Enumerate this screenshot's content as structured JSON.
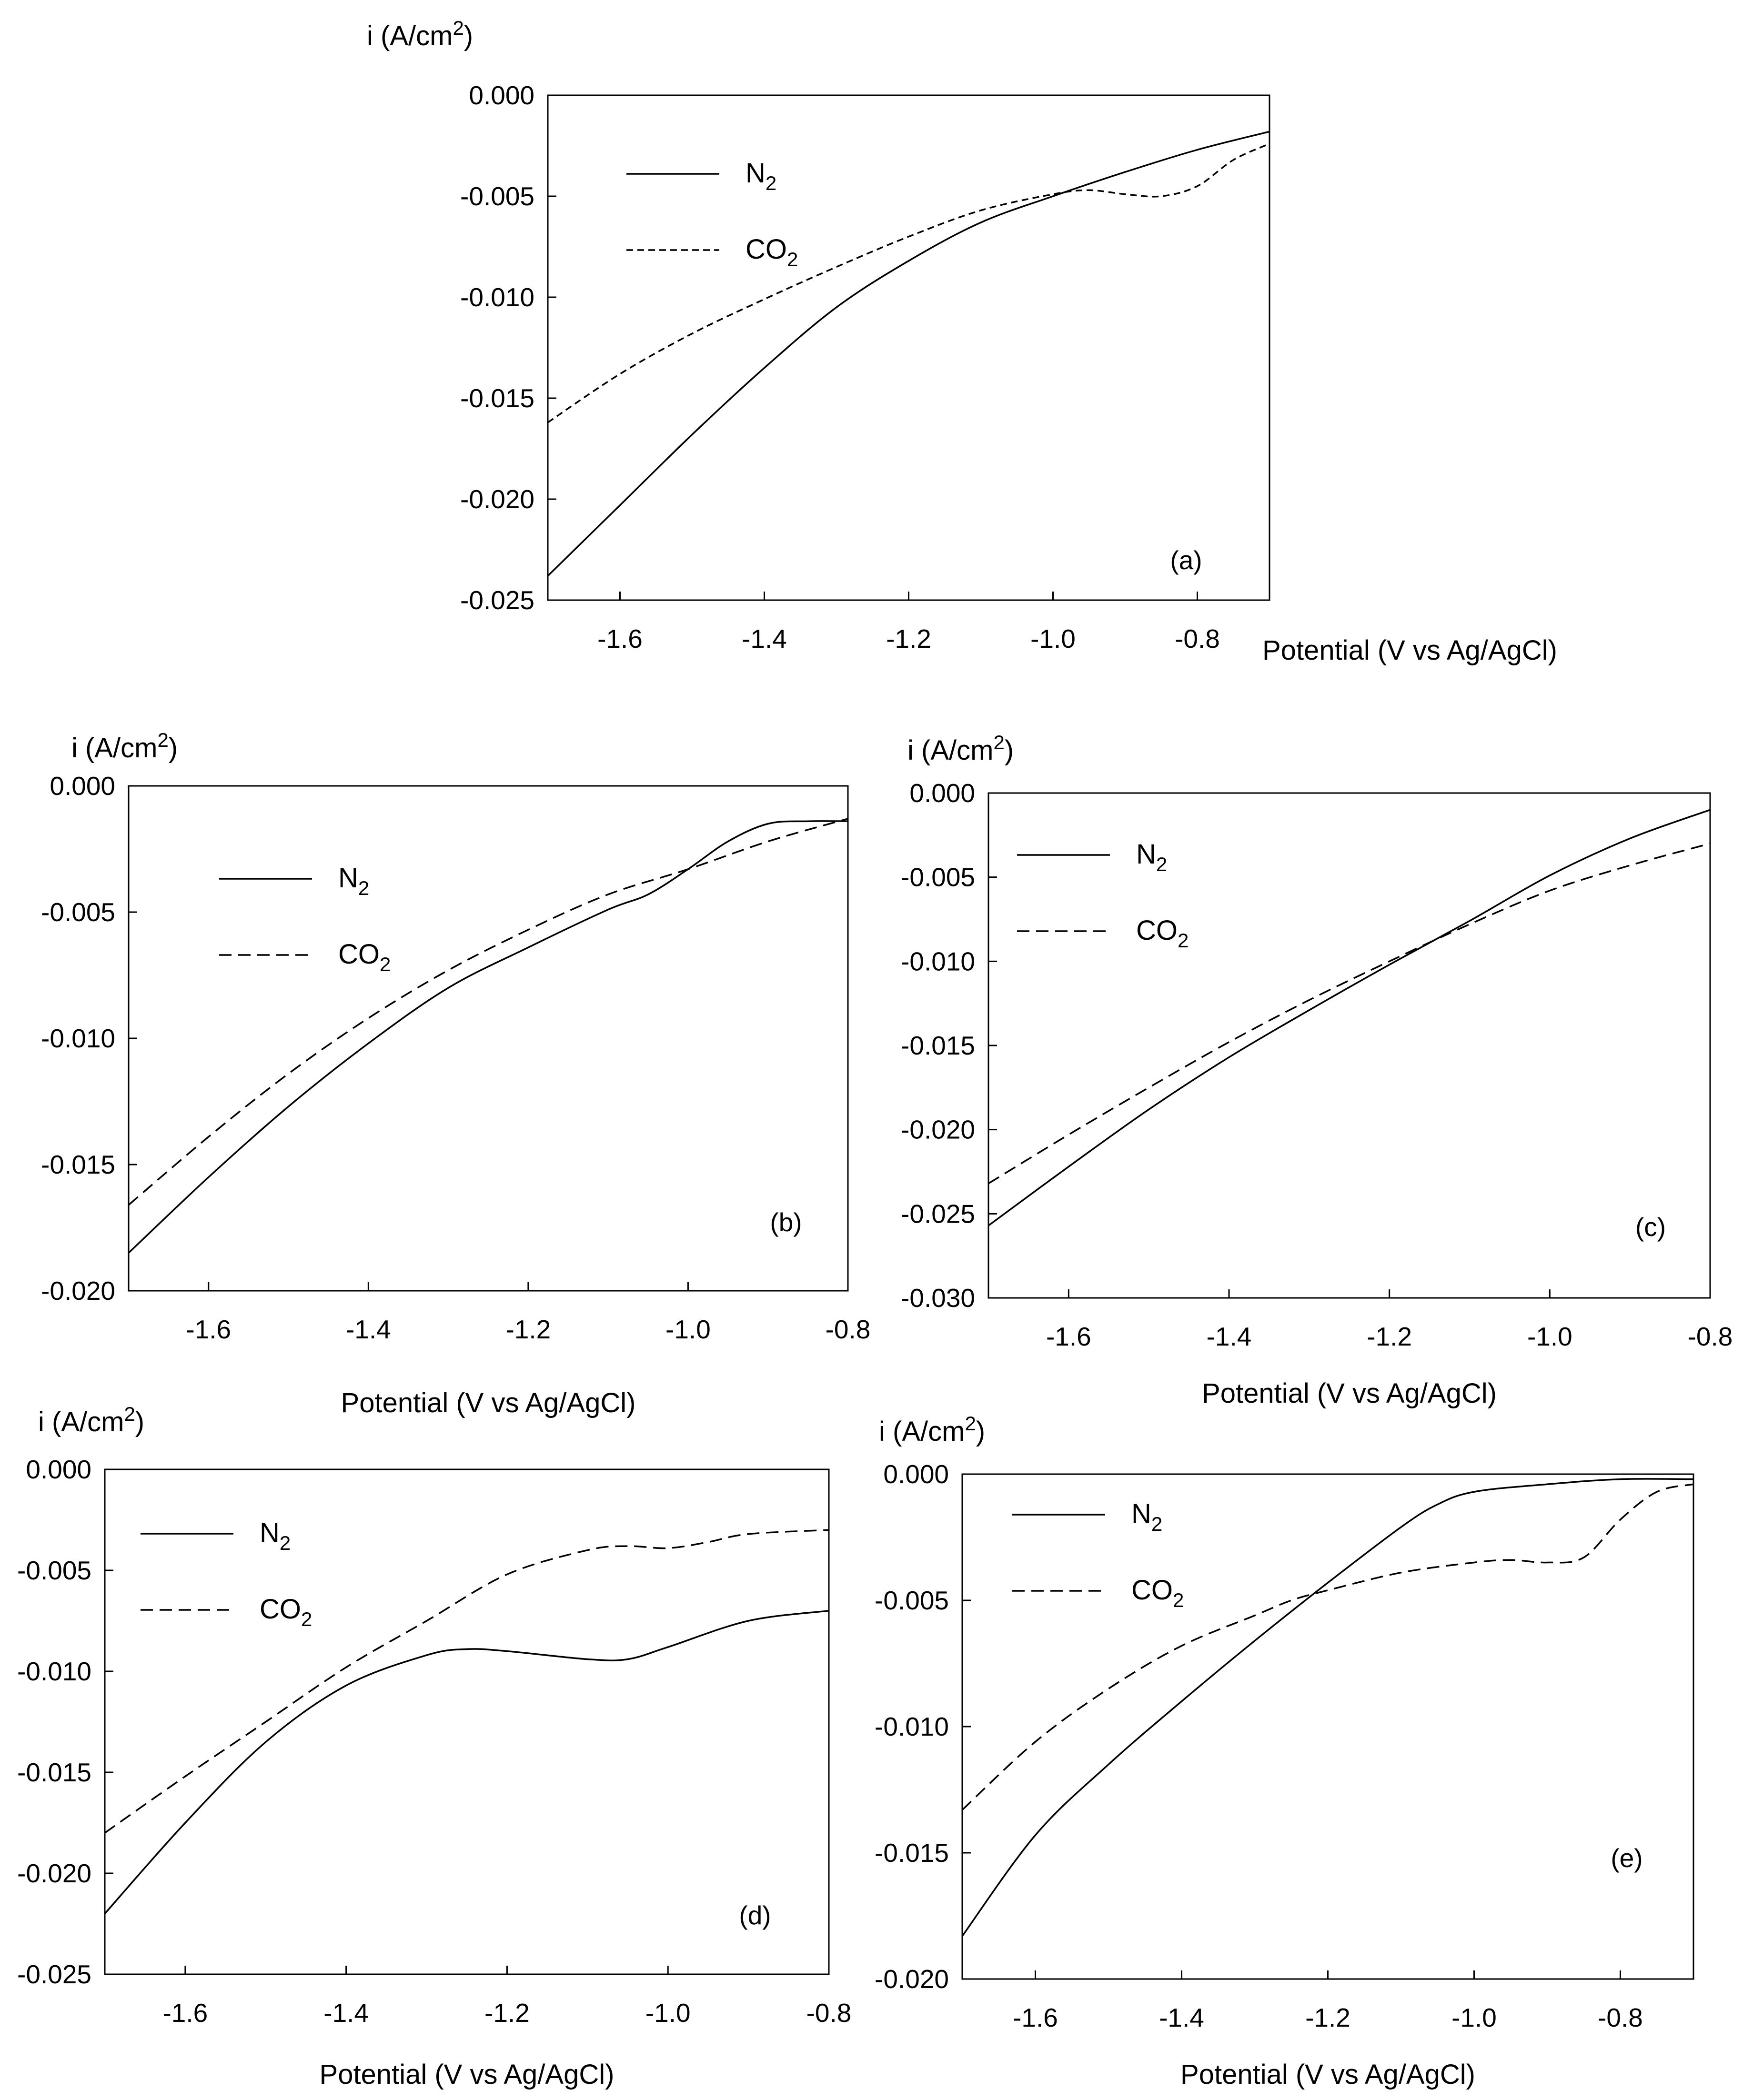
{
  "figure": {
    "y_axis_title_prefix": "i (A/cm",
    "y_axis_title_sup": "2",
    "y_axis_title_suffix": ")",
    "x_axis_title": "Potential (V vs Ag/AgCl)"
  },
  "chart_data": [
    {
      "id": "a",
      "type": "line",
      "panel_label": "(a)",
      "xlim": [
        -1.7,
        -0.7
      ],
      "ylim": [
        -0.025,
        0.0
      ],
      "xticks": [
        -1.6,
        -1.4,
        -1.2,
        -1.0,
        -0.8
      ],
      "xtick_labels": [
        "-1.6",
        "-1.4",
        "-1.2",
        "-1.0",
        "-0.8"
      ],
      "yticks": [
        0.0,
        -0.005,
        -0.01,
        -0.015,
        -0.02,
        -0.025
      ],
      "ytick_labels": [
        "0.000",
        "-0.005",
        "-0.010",
        "-0.015",
        "-0.020",
        "-0.025"
      ],
      "xlabel": "Potential (V vs Ag/AgCl)",
      "ylabel": "i (A/cm2)",
      "legend": {
        "position": "top-left"
      },
      "series": [
        {
          "name": "N2",
          "label_main": "N",
          "label_sub": "2",
          "style": "solid",
          "x": [
            -1.7,
            -1.6,
            -1.5,
            -1.4,
            -1.3,
            -1.2,
            -1.1,
            -1.0,
            -0.9,
            -0.8,
            -0.7
          ],
          "y": [
            -0.0238,
            -0.0203,
            -0.0168,
            -0.0135,
            -0.0105,
            -0.0082,
            -0.0063,
            -0.005,
            -0.0038,
            -0.0027,
            -0.0018
          ]
        },
        {
          "name": "CO2",
          "label_main": "CO",
          "label_sub": "2",
          "style": "short-dash",
          "x": [
            -1.7,
            -1.6,
            -1.5,
            -1.4,
            -1.3,
            -1.2,
            -1.1,
            -1.0,
            -0.95,
            -0.9,
            -0.85,
            -0.8,
            -0.75,
            -0.7
          ],
          "y": [
            -0.0162,
            -0.0138,
            -0.0118,
            -0.0101,
            -0.0085,
            -0.007,
            -0.0057,
            -0.0049,
            -0.0047,
            -0.0049,
            -0.005,
            -0.0045,
            -0.0032,
            -0.0024
          ]
        }
      ]
    },
    {
      "id": "b",
      "type": "line",
      "panel_label": "(b)",
      "xlim": [
        -1.7,
        -0.8
      ],
      "ylim": [
        -0.02,
        0.0
      ],
      "xticks": [
        -1.6,
        -1.4,
        -1.2,
        -1.0,
        -0.8
      ],
      "xtick_labels": [
        "-1.6",
        "-1.4",
        "-1.2",
        "-1.0",
        "-0.8"
      ],
      "yticks": [
        0.0,
        -0.005,
        -0.01,
        -0.015,
        -0.02
      ],
      "ytick_labels": [
        "0.000",
        "-0.005",
        "-0.010",
        "-0.015",
        "-0.020"
      ],
      "xlabel": "Potential (V vs Ag/AgCl)",
      "ylabel": "i (A/cm2)",
      "legend": {
        "position": "top-left"
      },
      "series": [
        {
          "name": "N2",
          "label_main": "N",
          "label_sub": "2",
          "style": "solid",
          "x": [
            -1.7,
            -1.6,
            -1.5,
            -1.4,
            -1.3,
            -1.2,
            -1.1,
            -1.05,
            -1.0,
            -0.95,
            -0.9,
            -0.85,
            -0.8
          ],
          "y": [
            -0.0185,
            -0.0155,
            -0.0127,
            -0.0102,
            -0.008,
            -0.0064,
            -0.0049,
            -0.0043,
            -0.0033,
            -0.0022,
            -0.0015,
            -0.0014,
            -0.0014
          ]
        },
        {
          "name": "CO2",
          "label_main": "CO",
          "label_sub": "2",
          "style": "dash",
          "x": [
            -1.7,
            -1.6,
            -1.5,
            -1.4,
            -1.3,
            -1.2,
            -1.1,
            -1.0,
            -0.9,
            -0.8
          ],
          "y": [
            -0.0166,
            -0.0139,
            -0.0114,
            -0.0092,
            -0.0073,
            -0.0057,
            -0.0043,
            -0.0033,
            -0.0022,
            -0.0013
          ]
        }
      ]
    },
    {
      "id": "c",
      "type": "line",
      "panel_label": "(c)",
      "xlim": [
        -1.7,
        -0.8
      ],
      "ylim": [
        -0.03,
        0.0
      ],
      "xticks": [
        -1.6,
        -1.4,
        -1.2,
        -1.0,
        -0.8
      ],
      "xtick_labels": [
        "-1.6",
        "-1.4",
        "-1.2",
        "-1.0",
        "-0.8"
      ],
      "yticks": [
        0.0,
        -0.005,
        -0.01,
        -0.015,
        -0.02,
        -0.025,
        -0.03
      ],
      "ytick_labels": [
        "0.000",
        "-0.005",
        "-0.010",
        "-0.015",
        "-0.020",
        "-0.025",
        "-0.030"
      ],
      "xlabel": "Potential (V vs Ag/AgCl)",
      "ylabel": "i (A/cm2)",
      "legend": {
        "position": "top-left"
      },
      "series": [
        {
          "name": "N2",
          "label_main": "N",
          "label_sub": "2",
          "style": "solid",
          "x": [
            -1.7,
            -1.6,
            -1.5,
            -1.4,
            -1.3,
            -1.2,
            -1.1,
            -1.0,
            -0.9,
            -0.8
          ],
          "y": [
            -0.0257,
            -0.0222,
            -0.0188,
            -0.0157,
            -0.0129,
            -0.0102,
            -0.0076,
            -0.0049,
            -0.0027,
            -0.001
          ]
        },
        {
          "name": "CO2",
          "label_main": "CO",
          "label_sub": "2",
          "style": "dash",
          "x": [
            -1.7,
            -1.6,
            -1.5,
            -1.4,
            -1.3,
            -1.2,
            -1.1,
            -1.0,
            -0.9,
            -0.8
          ],
          "y": [
            -0.0232,
            -0.0203,
            -0.0175,
            -0.0148,
            -0.0123,
            -0.01,
            -0.0078,
            -0.0058,
            -0.0043,
            -0.003
          ]
        }
      ]
    },
    {
      "id": "d",
      "type": "line",
      "panel_label": "(d)",
      "xlim": [
        -1.7,
        -0.8
      ],
      "ylim": [
        -0.025,
        0.0
      ],
      "xticks": [
        -1.6,
        -1.4,
        -1.2,
        -1.0,
        -0.8
      ],
      "xtick_labels": [
        "-1.6",
        "-1.4",
        "-1.2",
        "-1.0",
        "-0.8"
      ],
      "yticks": [
        0.0,
        -0.005,
        -0.01,
        -0.015,
        -0.02,
        -0.025
      ],
      "ytick_labels": [
        "0.000",
        "-0.005",
        "-0.010",
        "-0.015",
        "-0.020",
        "-0.025"
      ],
      "xlabel": "Potential (V vs Ag/AgCl)",
      "ylabel": "i (A/cm2)",
      "legend": {
        "position": "top-left"
      },
      "series": [
        {
          "name": "N2",
          "label_main": "N",
          "label_sub": "2",
          "style": "solid",
          "x": [
            -1.7,
            -1.6,
            -1.5,
            -1.4,
            -1.3,
            -1.25,
            -1.2,
            -1.1,
            -1.05,
            -1.0,
            -0.9,
            -0.8
          ],
          "y": [
            -0.022,
            -0.0175,
            -0.0135,
            -0.0107,
            -0.0092,
            -0.0089,
            -0.009,
            -0.0094,
            -0.0094,
            -0.0088,
            -0.0075,
            -0.007
          ]
        },
        {
          "name": "CO2",
          "label_main": "CO",
          "label_sub": "2",
          "style": "dash",
          "x": [
            -1.7,
            -1.6,
            -1.5,
            -1.4,
            -1.3,
            -1.2,
            -1.1,
            -1.05,
            -1.0,
            -0.95,
            -0.9,
            -0.8
          ],
          "y": [
            -0.018,
            -0.0152,
            -0.0125,
            -0.0098,
            -0.0075,
            -0.0052,
            -0.004,
            -0.0038,
            -0.0039,
            -0.0036,
            -0.0032,
            -0.003
          ]
        }
      ]
    },
    {
      "id": "e",
      "type": "line",
      "panel_label": "(e)",
      "xlim": [
        -1.7,
        -0.7
      ],
      "ylim": [
        -0.02,
        0.0
      ],
      "xticks": [
        -1.6,
        -1.4,
        -1.2,
        -1.0,
        -0.8
      ],
      "xtick_labels": [
        "-1.6",
        "-1.4",
        "-1.2",
        "-1.0",
        "-0.8"
      ],
      "yticks": [
        0.0,
        -0.005,
        -0.01,
        -0.015,
        -0.02
      ],
      "ytick_labels": [
        "0.000",
        "-0.005",
        "-0.010",
        "-0.015",
        "-0.020"
      ],
      "xlabel": "Potential (V vs Ag/AgCl)",
      "ylabel": "i (A/cm2)",
      "legend": {
        "position": "top-left"
      },
      "series": [
        {
          "name": "N2",
          "label_main": "N",
          "label_sub": "2",
          "style": "solid",
          "x": [
            -1.7,
            -1.6,
            -1.5,
            -1.4,
            -1.3,
            -1.2,
            -1.1,
            -1.05,
            -1.0,
            -0.9,
            -0.8,
            -0.7
          ],
          "y": [
            -0.0183,
            -0.0143,
            -0.0115,
            -0.009,
            -0.0066,
            -0.0043,
            -0.0021,
            -0.0012,
            -0.0007,
            -0.0004,
            -0.0002,
            -0.0002
          ]
        },
        {
          "name": "CO2",
          "label_main": "CO",
          "label_sub": "2",
          "style": "dash",
          "x": [
            -1.7,
            -1.6,
            -1.5,
            -1.4,
            -1.3,
            -1.25,
            -1.2,
            -1.1,
            -1.0,
            -0.95,
            -0.9,
            -0.85,
            -0.8,
            -0.75,
            -0.7
          ],
          "y": [
            -0.0133,
            -0.0106,
            -0.0085,
            -0.0068,
            -0.0056,
            -0.005,
            -0.0046,
            -0.0039,
            -0.0035,
            -0.0034,
            -0.0035,
            -0.0033,
            -0.0018,
            -0.0007,
            -0.0004
          ]
        }
      ]
    }
  ]
}
